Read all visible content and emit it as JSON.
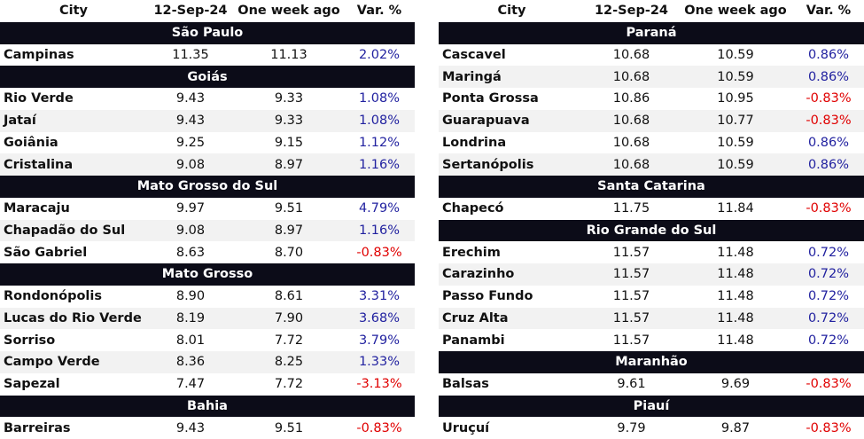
{
  "columns": {
    "city": "City",
    "current": "12-Sep-24",
    "prior": "One week ago",
    "var": "Var. %"
  },
  "left": [
    {
      "region": "São Paulo",
      "rows": [
        {
          "city": "Campinas",
          "current": "11.35",
          "prior": "11.13",
          "var": "2.02%",
          "sign": "pos"
        }
      ]
    },
    {
      "region": "Goiás",
      "rows": [
        {
          "city": "Rio Verde",
          "current": "9.43",
          "prior": "9.33",
          "var": "1.08%",
          "sign": "pos"
        },
        {
          "city": "Jataí",
          "current": "9.43",
          "prior": "9.33",
          "var": "1.08%",
          "sign": "pos"
        },
        {
          "city": "Goiânia",
          "current": "9.25",
          "prior": "9.15",
          "var": "1.12%",
          "sign": "pos"
        },
        {
          "city": "Cristalina",
          "current": "9.08",
          "prior": "8.97",
          "var": "1.16%",
          "sign": "pos"
        }
      ]
    },
    {
      "region": "Mato Grosso do Sul",
      "rows": [
        {
          "city": "Maracaju",
          "current": "9.97",
          "prior": "9.51",
          "var": "4.79%",
          "sign": "pos"
        },
        {
          "city": "Chapadão do Sul",
          "current": "9.08",
          "prior": "8.97",
          "var": "1.16%",
          "sign": "pos"
        },
        {
          "city": "São Gabriel",
          "current": "8.63",
          "prior": "8.70",
          "var": "-0.83%",
          "sign": "neg"
        }
      ]
    },
    {
      "region": "Mato Grosso",
      "rows": [
        {
          "city": "Rondonópolis",
          "current": "8.90",
          "prior": "8.61",
          "var": "3.31%",
          "sign": "pos"
        },
        {
          "city": "Lucas do Rio Verde",
          "current": "8.19",
          "prior": "7.90",
          "var": "3.68%",
          "sign": "pos"
        },
        {
          "city": "Sorriso",
          "current": "8.01",
          "prior": "7.72",
          "var": "3.79%",
          "sign": "pos"
        },
        {
          "city": "Campo Verde",
          "current": "8.36",
          "prior": "8.25",
          "var": "1.33%",
          "sign": "pos"
        },
        {
          "city": "Sapezal",
          "current": "7.47",
          "prior": "7.72",
          "var": "-3.13%",
          "sign": "neg"
        }
      ]
    },
    {
      "region": "Bahia",
      "rows": [
        {
          "city": "Barreiras",
          "current": "9.43",
          "prior": "9.51",
          "var": "-0.83%",
          "sign": "neg"
        }
      ]
    }
  ],
  "right": [
    {
      "region": "Paraná",
      "rows": [
        {
          "city": "Cascavel",
          "current": "10.68",
          "prior": "10.59",
          "var": "0.86%",
          "sign": "pos"
        },
        {
          "city": "Maringá",
          "current": "10.68",
          "prior": "10.59",
          "var": "0.86%",
          "sign": "pos"
        },
        {
          "city": "Ponta Grossa",
          "current": "10.86",
          "prior": "10.95",
          "var": "-0.83%",
          "sign": "neg"
        },
        {
          "city": "Guarapuava",
          "current": "10.68",
          "prior": "10.77",
          "var": "-0.83%",
          "sign": "neg"
        },
        {
          "city": "Londrina",
          "current": "10.68",
          "prior": "10.59",
          "var": "0.86%",
          "sign": "pos"
        },
        {
          "city": "Sertanópolis",
          "current": "10.68",
          "prior": "10.59",
          "var": "0.86%",
          "sign": "pos"
        }
      ]
    },
    {
      "region": "Santa Catarina",
      "rows": [
        {
          "city": "Chapecó",
          "current": "11.75",
          "prior": "11.84",
          "var": "-0.83%",
          "sign": "neg"
        }
      ]
    },
    {
      "region": "Rio Grande do Sul",
      "rows": [
        {
          "city": "Erechim",
          "current": "11.57",
          "prior": "11.48",
          "var": "0.72%",
          "sign": "pos"
        },
        {
          "city": "Carazinho",
          "current": "11.57",
          "prior": "11.48",
          "var": "0.72%",
          "sign": "pos"
        },
        {
          "city": "Passo Fundo",
          "current": "11.57",
          "prior": "11.48",
          "var": "0.72%",
          "sign": "pos"
        },
        {
          "city": "Cruz Alta",
          "current": "11.57",
          "prior": "11.48",
          "var": "0.72%",
          "sign": "pos"
        },
        {
          "city": "Panambi",
          "current": "11.57",
          "prior": "11.48",
          "var": "0.72%",
          "sign": "pos"
        }
      ]
    },
    {
      "region": "Maranhão",
      "rows": [
        {
          "city": "Balsas",
          "current": "9.61",
          "prior": "9.69",
          "var": "-0.83%",
          "sign": "neg"
        }
      ]
    },
    {
      "region": "Piauí",
      "rows": [
        {
          "city": "Uruçuí",
          "current": "9.79",
          "prior": "9.87",
          "var": "-0.83%",
          "sign": "neg"
        }
      ]
    }
  ]
}
